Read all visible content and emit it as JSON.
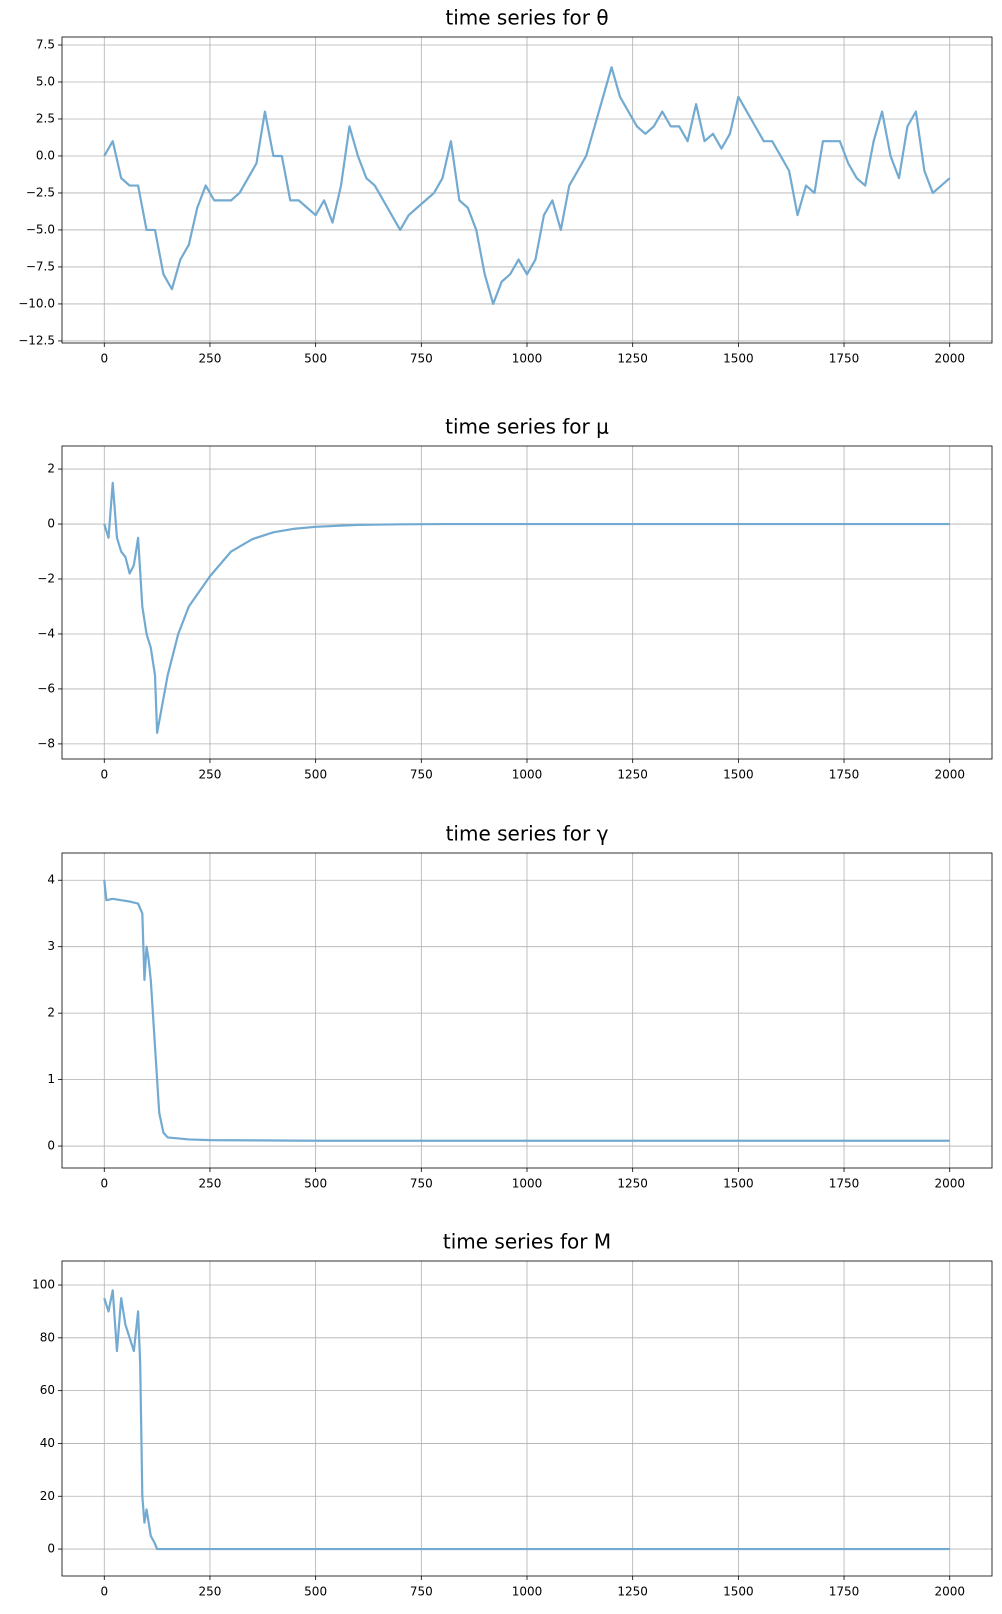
{
  "chart_data": [
    {
      "type": "line",
      "title": "time series for θ",
      "color": "#73aad1",
      "grid": true,
      "xlim": [
        -100,
        2100
      ],
      "xticks": [
        0,
        250,
        500,
        750,
        1000,
        1250,
        1500,
        1750,
        2000
      ],
      "ylim": [
        -12.64,
        8.04
      ],
      "yticks": [
        {
          "value": -12.5,
          "label": "−12.5"
        },
        {
          "value": -10,
          "label": "−10.0"
        },
        {
          "value": -7.5,
          "label": "−7.5"
        },
        {
          "value": -5,
          "label": "−5.0"
        },
        {
          "value": -2.5,
          "label": "−2.5"
        },
        {
          "value": 0,
          "label": "0.0"
        },
        {
          "value": 2.5,
          "label": "2.5"
        },
        {
          "value": 5,
          "label": "5.0"
        },
        {
          "value": 7.5,
          "label": "7.5"
        }
      ],
      "x": [
        0,
        20,
        40,
        60,
        80,
        100,
        120,
        140,
        160,
        180,
        200,
        220,
        240,
        260,
        280,
        300,
        320,
        340,
        360,
        380,
        400,
        420,
        440,
        460,
        480,
        500,
        520,
        540,
        560,
        580,
        600,
        620,
        640,
        660,
        680,
        700,
        720,
        740,
        760,
        780,
        800,
        820,
        840,
        860,
        880,
        900,
        920,
        940,
        960,
        980,
        1000,
        1020,
        1040,
        1060,
        1080,
        1100,
        1120,
        1140,
        1160,
        1180,
        1200,
        1220,
        1240,
        1260,
        1280,
        1300,
        1320,
        1340,
        1360,
        1380,
        1400,
        1420,
        1440,
        1460,
        1480,
        1500,
        1520,
        1540,
        1560,
        1580,
        1600,
        1620,
        1640,
        1660,
        1680,
        1700,
        1720,
        1740,
        1760,
        1780,
        1800,
        1820,
        1840,
        1860,
        1880,
        1900,
        1920,
        1940,
        1960,
        1980,
        2000
      ],
      "values": [
        0,
        1,
        -1.5,
        -2,
        -2,
        -5,
        -5,
        -8,
        -9,
        -7,
        -6,
        -3.5,
        -2,
        -3,
        -3,
        -3,
        -2.5,
        -1.5,
        -0.5,
        3,
        0,
        0,
        -3,
        -3,
        -3.5,
        -4,
        -3,
        -4.5,
        -2,
        2,
        0,
        -1.5,
        -2,
        -3,
        -4,
        -5,
        -4,
        -3.5,
        -3,
        -2.5,
        -1.5,
        1,
        -3,
        -3.5,
        -5,
        -8,
        -10,
        -8.5,
        -8,
        -7,
        -8,
        -7,
        -4,
        -3,
        -5,
        -2,
        -1,
        0,
        2,
        4,
        6,
        4,
        3,
        2,
        1.5,
        2,
        3,
        2,
        2,
        1,
        3.5,
        1,
        1.5,
        0.5,
        1.5,
        4,
        3,
        2,
        1,
        1,
        0,
        -1,
        -4,
        -2,
        -2.5,
        1,
        1,
        1,
        -0.5,
        -1.5,
        -2,
        1,
        3,
        0,
        -1.5,
        2,
        3,
        -1,
        -2.5,
        -2,
        -1.5
      ]
    },
    {
      "type": "line",
      "title": "time series for μ",
      "color": "#73aad1",
      "grid": true,
      "xlim": [
        -100,
        2100
      ],
      "xticks": [
        0,
        250,
        500,
        750,
        1000,
        1250,
        1500,
        1750,
        2000
      ],
      "ylim": [
        -8.55,
        2.84
      ],
      "yticks": [
        {
          "value": -8,
          "label": "−8"
        },
        {
          "value": -6,
          "label": "−6"
        },
        {
          "value": -4,
          "label": "−4"
        },
        {
          "value": -2,
          "label": "−2"
        },
        0,
        2
      ],
      "x": [
        0,
        10,
        20,
        30,
        40,
        50,
        60,
        70,
        80,
        90,
        100,
        110,
        120,
        125,
        150,
        175,
        200,
        250,
        300,
        350,
        400,
        450,
        500,
        600,
        700,
        800,
        1000,
        1500,
        2000
      ],
      "values": [
        0,
        -0.5,
        1.5,
        -0.5,
        -1,
        -1.2,
        -1.8,
        -1.5,
        -0.5,
        -3,
        -4,
        -4.5,
        -5.5,
        -7.6,
        -5.5,
        -4,
        -3,
        -1.9,
        -1,
        -0.55,
        -0.3,
        -0.17,
        -0.1,
        -0.03,
        -0.01,
        0,
        0,
        0,
        0
      ]
    },
    {
      "type": "line",
      "title": "time series for γ",
      "color": "#73aad1",
      "grid": true,
      "xlim": [
        -100,
        2100
      ],
      "xticks": [
        0,
        250,
        500,
        750,
        1000,
        1250,
        1500,
        1750,
        2000
      ],
      "ylim": [
        -0.33,
        4.41
      ],
      "yticks": [
        0,
        1,
        2,
        3,
        4
      ],
      "x": [
        0,
        5,
        20,
        40,
        60,
        80,
        90,
        95,
        100,
        105,
        110,
        115,
        120,
        125,
        130,
        140,
        150,
        200,
        250,
        500,
        1000,
        2000
      ],
      "values": [
        4,
        3.7,
        3.72,
        3.7,
        3.68,
        3.65,
        3.5,
        2.5,
        3,
        2.8,
        2.5,
        2,
        1.5,
        1,
        0.5,
        0.2,
        0.13,
        0.1,
        0.09,
        0.08,
        0.08,
        0.08
      ]
    },
    {
      "type": "line",
      "title": "time series for M",
      "color": "#73aad1",
      "grid": true,
      "xlim": [
        -100,
        2100
      ],
      "xticks": [
        0,
        250,
        500,
        750,
        1000,
        1250,
        1500,
        1750,
        2000
      ],
      "ylim": [
        -10.2,
        109.1
      ],
      "yticks": [
        0,
        20,
        40,
        60,
        80,
        100
      ],
      "x": [
        0,
        10,
        20,
        30,
        40,
        50,
        60,
        70,
        80,
        85,
        90,
        95,
        100,
        110,
        120,
        125,
        150,
        500,
        1000,
        2000
      ],
      "values": [
        95,
        90,
        98,
        75,
        95,
        85,
        80,
        75,
        90,
        70,
        20,
        10,
        15,
        5,
        2,
        0,
        0,
        0,
        0,
        0
      ]
    }
  ]
}
